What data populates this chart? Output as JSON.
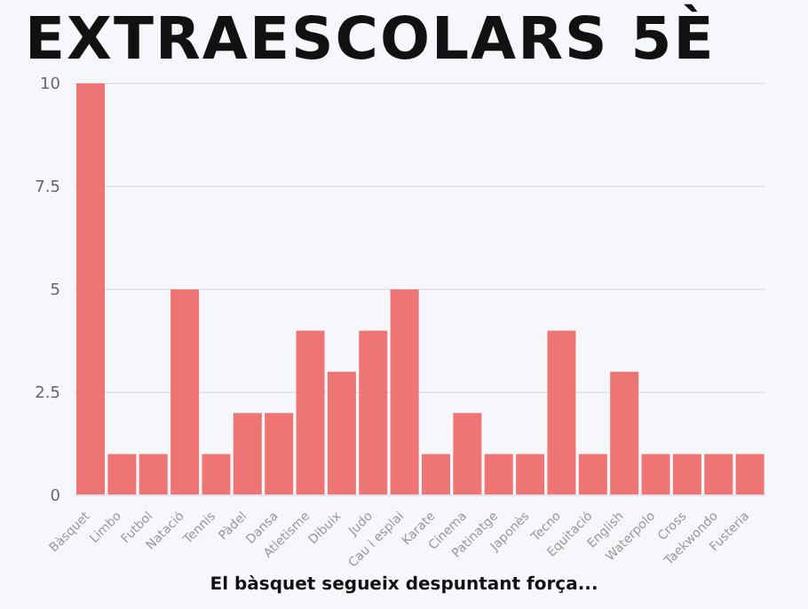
{
  "chart_data": {
    "type": "bar",
    "title": "EXTRAESCOLARS 5È",
    "categories": [
      "Bàsquet",
      "Limbo",
      "Futbol",
      "Natació",
      "Tennis",
      "Pàdel",
      "Dansa",
      "Atletisme",
      "Dibuix",
      "Judo",
      "Cau i esplai",
      "Karate",
      "Cinema",
      "Patinatge",
      "Japonès",
      "Tecno",
      "Equitació",
      "English",
      "Waterpolo",
      "Cross",
      "Taekwondo",
      "Fusteria"
    ],
    "values": [
      10,
      1,
      1,
      5,
      1,
      2,
      2,
      4,
      3,
      4,
      5,
      1,
      2,
      1,
      1,
      4,
      1,
      3,
      1,
      1,
      1,
      1
    ],
    "color": "#ef7575",
    "ylim": [
      0,
      10
    ],
    "yticks": [
      0,
      {
        "value": 2.5,
        "label": "2.5"
      },
      5,
      {
        "value": 7.5,
        "label": "7.5"
      },
      10
    ],
    "grid": "y",
    "annotations": [
      "El bàsquet segueix despuntant força..."
    ]
  }
}
